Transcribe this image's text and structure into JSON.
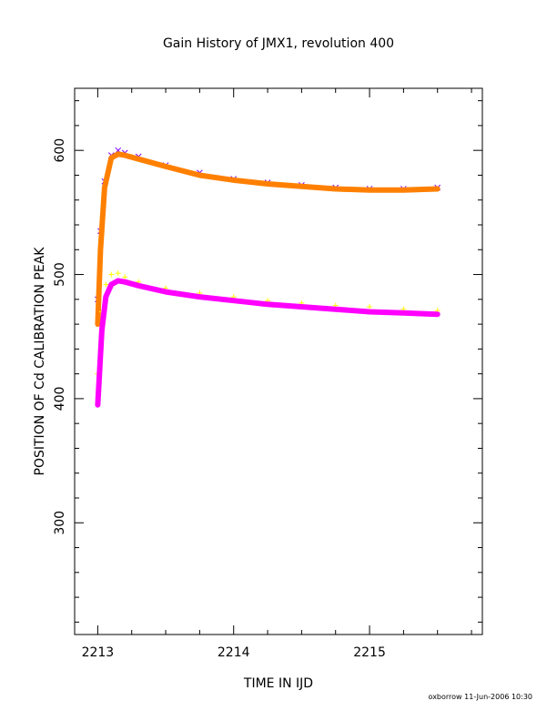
{
  "chart_data": {
    "type": "scatter",
    "title": "Gain History of JMX1, revolution 400",
    "xlabel": "TIME IN IJD",
    "ylabel": "POSITION OF Cd CALIBRATION PEAK",
    "xlim": [
      2212.83,
      2215.83
    ],
    "ylim": [
      210,
      650
    ],
    "x_ticks": [
      "2213",
      "2214",
      "2215"
    ],
    "y_ticks": [
      "300",
      "400",
      "500",
      "600"
    ],
    "grid": false,
    "legend": "none",
    "series": [
      {
        "color": "#8000ff",
        "marker": "x",
        "x": [
          2213.0,
          2213.02,
          2213.05,
          2213.1,
          2213.15,
          2213.2,
          2213.3,
          2213.5,
          2213.75,
          2214.0,
          2214.25,
          2214.5,
          2214.75,
          2215.0,
          2215.25,
          2215.5
        ],
        "y": [
          480,
          535,
          575,
          596,
          600,
          598,
          595,
          588,
          582,
          577,
          574,
          572,
          570,
          569,
          569,
          570
        ]
      },
      {
        "color": "#ff8000",
        "marker": "line",
        "x": [
          2213.0,
          2213.02,
          2213.05,
          2213.1,
          2213.15,
          2213.2,
          2213.3,
          2213.5,
          2213.75,
          2214.0,
          2214.25,
          2214.5,
          2214.75,
          2215.0,
          2215.25,
          2215.5
        ],
        "y": [
          460,
          520,
          570,
          594,
          597,
          596,
          593,
          587,
          580,
          576,
          573,
          571,
          569,
          568,
          568,
          569
        ]
      },
      {
        "color": "#ffff00",
        "marker": "+",
        "x": [
          2213.0,
          2213.03,
          2213.06,
          2213.1,
          2213.15,
          2213.2,
          2213.3,
          2213.5,
          2213.75,
          2214.0,
          2214.25,
          2214.5,
          2214.75,
          2215.0,
          2215.25,
          2215.5
        ],
        "y": [
          420,
          470,
          492,
          500,
          501,
          498,
          494,
          489,
          485,
          482,
          479,
          477,
          475,
          474,
          472,
          471
        ]
      },
      {
        "color": "#ff00ff",
        "marker": "line",
        "x": [
          2213.0,
          2213.03,
          2213.06,
          2213.1,
          2213.15,
          2213.2,
          2213.3,
          2213.5,
          2213.75,
          2214.0,
          2214.25,
          2214.5,
          2214.75,
          2215.0,
          2215.25,
          2215.5
        ],
        "y": [
          395,
          455,
          482,
          492,
          495,
          494,
          491,
          486,
          482,
          479,
          476,
          474,
          472,
          470,
          469,
          468
        ]
      }
    ]
  },
  "footer": "oxborrow 11-Jun-2006 10:30"
}
